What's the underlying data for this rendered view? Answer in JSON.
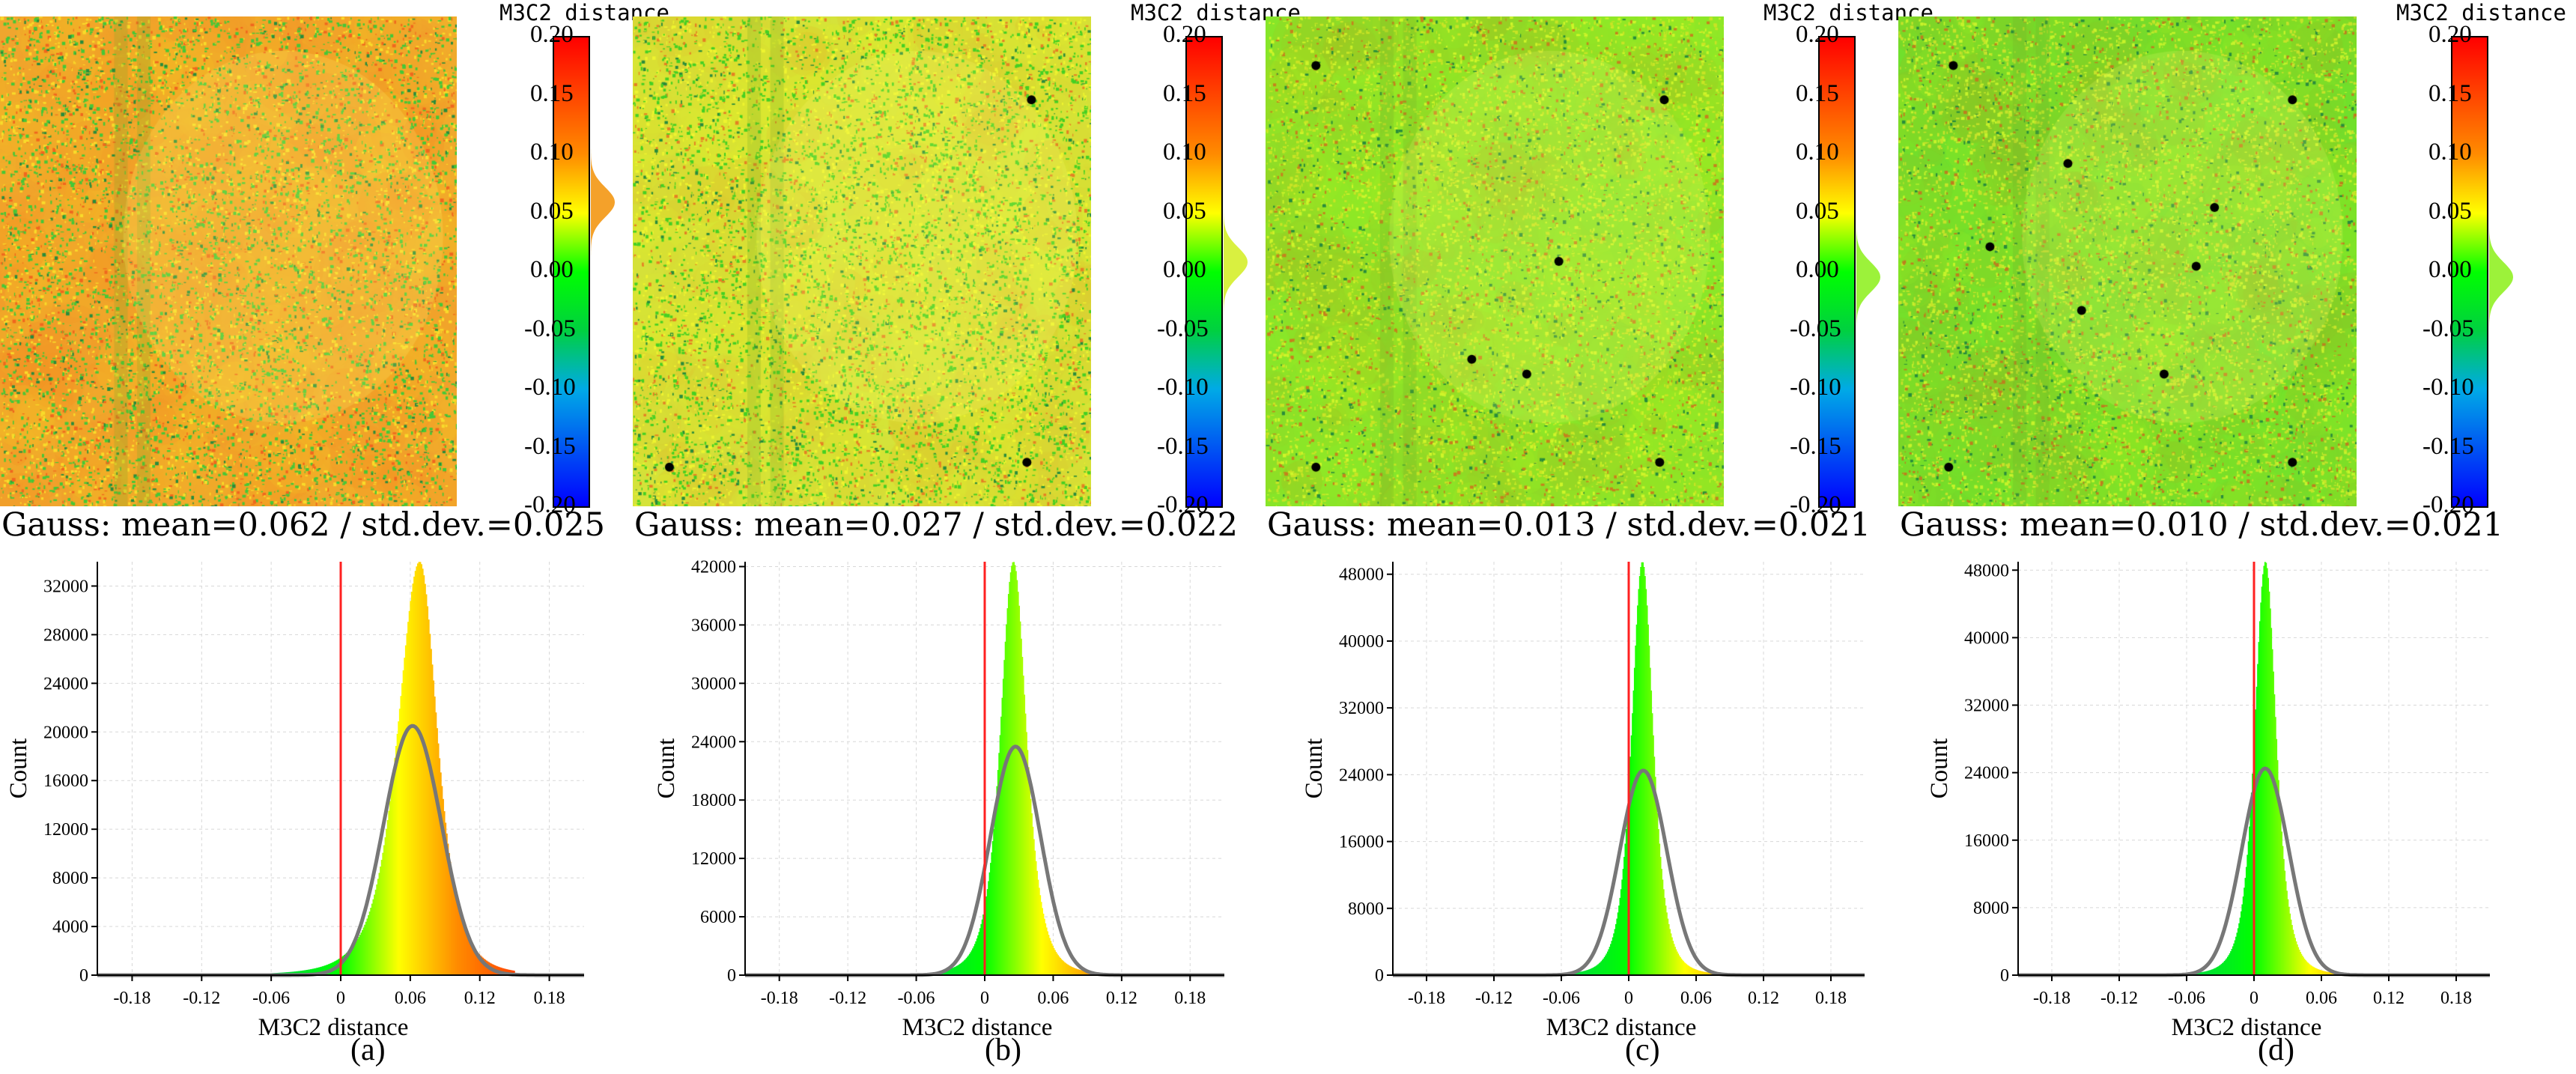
{
  "figure": {
    "panels": [
      {
        "id": "a",
        "label": "(a)",
        "gauss_text": "Gauss: mean=0.062 / std.dev.=0.025",
        "colorbar_title": "M3C2 distance",
        "map_base": "#f0a62e",
        "map_speckle": "#44c837",
        "dots": 0
      },
      {
        "id": "b",
        "label": "(b)",
        "gauss_text": "Gauss: mean=0.027 / std.dev.=0.022",
        "colorbar_title": "M3C2 distance",
        "map_base": "#d5e33a",
        "map_speckle": "#44d023",
        "dots": 3
      },
      {
        "id": "c",
        "label": "(c)",
        "gauss_text": "Gauss: mean=0.013 / std.dev.=0.021",
        "colorbar_title": "M3C2 distance",
        "map_base": "#86e62a",
        "map_speckle": "#c9e425",
        "dots": 7
      },
      {
        "id": "d",
        "label": "(d)",
        "gauss_text": "Gauss: mean=0.010 / std.dev.=0.021",
        "colorbar_title": "M3C2 distance",
        "map_base": "#70e02c",
        "map_speckle": "#c6e22a",
        "dots": 10
      }
    ],
    "colorbar_ticks": [
      "0.20",
      "0.15",
      "0.10",
      "0.05",
      "0.00",
      "-0.05",
      "-0.10",
      "-0.15",
      "-0.20"
    ],
    "colors": {
      "red": "#ff0000",
      "yellow": "#ffff00",
      "green": "#00ff00",
      "blue": "#0000ff",
      "gauss_curve": "#777777",
      "zero_line": "#ff2020"
    }
  },
  "chart_data": [
    {
      "type": "bar",
      "panel": "a",
      "title": "Gauss: mean=0.062 / std.dev.=0.025",
      "xlabel": "M3C2 distance",
      "ylabel": "Count",
      "xlim": [
        -0.21,
        0.21
      ],
      "ylim": [
        0,
        34000
      ],
      "x_ticks": [
        "-0.18",
        "-0.12",
        "-0.06",
        "0",
        "0.06",
        "0.12",
        "0.18"
      ],
      "y_ticks": [
        "0",
        "4000",
        "8000",
        "12000",
        "16000",
        "20000",
        "24000",
        "28000",
        "32000"
      ],
      "y_tick_values": [
        0,
        4000,
        8000,
        12000,
        16000,
        20000,
        24000,
        28000,
        32000
      ],
      "histogram": {
        "peak_x": 0.068,
        "peak_count": 34000,
        "left_width": 0.02,
        "right_width": 0.016,
        "x_min": -0.12,
        "x_max": 0.15
      },
      "gauss": {
        "mean": 0.062,
        "std": 0.025,
        "peak_count": 20500
      },
      "zero_line": 0
    },
    {
      "type": "bar",
      "panel": "b",
      "title": "Gauss: mean=0.027 / std.dev.=0.022",
      "xlabel": "M3C2 distance",
      "ylabel": "Count",
      "xlim": [
        -0.21,
        0.21
      ],
      "ylim": [
        0,
        42500
      ],
      "x_ticks": [
        "-0.18",
        "-0.12",
        "-0.06",
        "0",
        "0.06",
        "0.12",
        "0.18"
      ],
      "y_ticks": [
        "0",
        "6000",
        "12000",
        "18000",
        "24000",
        "30000",
        "36000",
        "42000"
      ],
      "y_tick_values": [
        0,
        6000,
        12000,
        18000,
        24000,
        30000,
        36000,
        42000
      ],
      "histogram": {
        "peak_x": 0.025,
        "peak_count": 42500,
        "left_width": 0.012,
        "right_width": 0.012,
        "x_min": -0.12,
        "x_max": 0.12
      },
      "gauss": {
        "mean": 0.027,
        "std": 0.022,
        "peak_count": 23500
      },
      "zero_line": 0
    },
    {
      "type": "bar",
      "panel": "c",
      "title": "Gauss: mean=0.013 / std.dev.=0.021",
      "xlabel": "M3C2 distance",
      "ylabel": "Count",
      "xlim": [
        -0.21,
        0.21
      ],
      "ylim": [
        0,
        49500
      ],
      "x_ticks": [
        "-0.18",
        "-0.12",
        "-0.06",
        "0",
        "0.06",
        "0.12",
        "0.18"
      ],
      "y_ticks": [
        "0",
        "8000",
        "16000",
        "24000",
        "32000",
        "40000",
        "48000"
      ],
      "y_tick_values": [
        0,
        8000,
        16000,
        24000,
        32000,
        40000,
        48000
      ],
      "histogram": {
        "peak_x": 0.012,
        "peak_count": 49500,
        "left_width": 0.01,
        "right_width": 0.01,
        "x_min": -0.12,
        "x_max": 0.12
      },
      "gauss": {
        "mean": 0.013,
        "std": 0.021,
        "peak_count": 24500
      },
      "zero_line": 0
    },
    {
      "type": "bar",
      "panel": "d",
      "title": "Gauss: mean=0.010 / std.dev.=0.021",
      "xlabel": "M3C2 distance",
      "ylabel": "Count",
      "xlim": [
        -0.21,
        0.21
      ],
      "ylim": [
        0,
        49000
      ],
      "x_ticks": [
        "-0.18",
        "-0.12",
        "-0.06",
        "0",
        "0.06",
        "0.12",
        "0.18"
      ],
      "y_ticks": [
        "0",
        "8000",
        "16000",
        "24000",
        "32000",
        "40000",
        "48000"
      ],
      "y_tick_values": [
        0,
        8000,
        16000,
        24000,
        32000,
        40000,
        48000
      ],
      "histogram": {
        "peak_x": 0.01,
        "peak_count": 49000,
        "left_width": 0.01,
        "right_width": 0.01,
        "x_min": -0.12,
        "x_max": 0.12
      },
      "gauss": {
        "mean": 0.01,
        "std": 0.021,
        "peak_count": 24500
      },
      "zero_line": 0
    }
  ]
}
